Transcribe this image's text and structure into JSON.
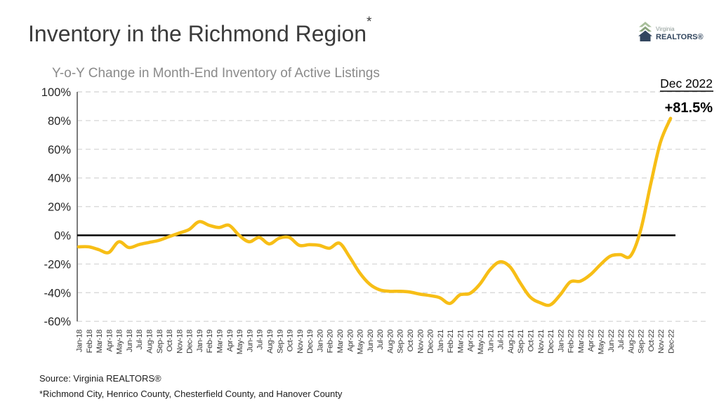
{
  "slide": {
    "title": "Inventory in the Richmond Region",
    "title_note_marker": "*",
    "logo": {
      "line1": "Virginia",
      "line2": "REALTORS®"
    },
    "footer": {
      "source": "Source: Virginia REALTORS®",
      "note": "*Richmond City, Henrico County, Chesterfield County, and Hanover County"
    }
  },
  "colors": {
    "line": "#F7BE16",
    "zero_line": "#000000",
    "grid": "#D9D9D9",
    "axis": "#6e6e6e",
    "tick_text": "#262626",
    "xlabel_text": "#3d3d3d",
    "annotation_text": "#000000",
    "logo_navy": "#33475f",
    "logo_green_light": "#a8bf9b",
    "logo_green_dark": "#8ba57e",
    "logo_gray_text": "#8a9793"
  },
  "chart_data": {
    "type": "line",
    "title": "Y-o-Y Change in Month-End Inventory of Active Listings",
    "xlabel": "",
    "ylabel": "",
    "ylim": [
      -60,
      100
    ],
    "ytick_step": 20,
    "ytick_labels": [
      "100%",
      "80%",
      "60%",
      "40%",
      "20%",
      "0%",
      "-20%",
      "-40%",
      "-60%"
    ],
    "grid": "horizontal-dashed",
    "zero_line": true,
    "legend": "none",
    "categories": [
      "Jan-18",
      "Feb-18",
      "Mar-18",
      "Apr-18",
      "May-18",
      "Jun-18",
      "Jul-18",
      "Aug-18",
      "Sep-18",
      "Oct-18",
      "Nov-18",
      "Dec-18",
      "Jan-19",
      "Feb-19",
      "Mar-19",
      "Apr-19",
      "May-19",
      "Jun-19",
      "Jul-19",
      "Aug-19",
      "Sep-19",
      "Oct-19",
      "Nov-19",
      "Dec-19",
      "Jan-20",
      "Feb-20",
      "Mar-20",
      "Apr-20",
      "May-20",
      "Jun-20",
      "Jul-20",
      "Aug-20",
      "Sep-20",
      "Oct-20",
      "Nov-20",
      "Dec-20",
      "Jan-21",
      "Feb-21",
      "Mar-21",
      "Apr-21",
      "May-21",
      "Jun-21",
      "Jul-21",
      "Aug-21",
      "Sep-21",
      "Oct-21",
      "Nov-21",
      "Dec-21",
      "Jan-22",
      "Feb-22",
      "Mar-22",
      "Apr-22",
      "May-22",
      "Jun-22",
      "Jul-22",
      "Aug-22",
      "Sep-22",
      "Oct-22",
      "Nov-22",
      "Dec-22"
    ],
    "series": [
      {
        "name": "Y-o-Y change in active listings (%)",
        "values": [
          -8,
          -8,
          -10,
          -12,
          -4.5,
          -8.5,
          -6.5,
          -5,
          -3.5,
          -1,
          1.5,
          4,
          9.5,
          7,
          5.5,
          7,
          0,
          -4.5,
          -1.5,
          -6,
          -2,
          -1.5,
          -7,
          -6.5,
          -7,
          -9,
          -5.5,
          -15,
          -26,
          -34,
          -38,
          -39,
          -39,
          -39.5,
          -41,
          -42,
          -43.5,
          -47.5,
          -41.5,
          -40.5,
          -34,
          -24,
          -18.5,
          -22,
          -33,
          -43,
          -47,
          -48.5,
          -41.5,
          -32.5,
          -32,
          -27.5,
          -20.5,
          -14.5,
          -13.5,
          -14.5,
          3,
          35,
          65,
          81.5
        ]
      }
    ],
    "annotation": {
      "label": "Dec 2022",
      "value": "+81.5%"
    }
  }
}
